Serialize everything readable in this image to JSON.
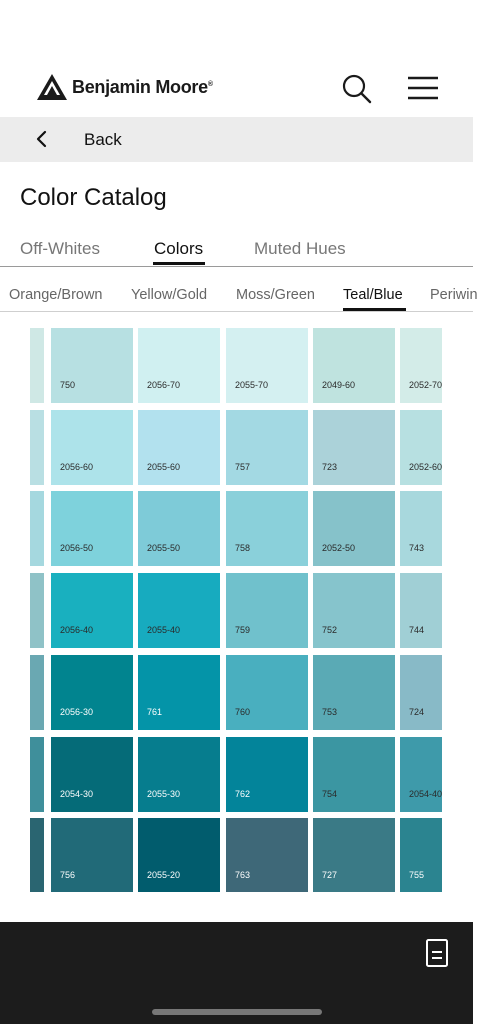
{
  "header": {
    "brand_name": "Benjamin Moore",
    "brand_mark": "®",
    "icons": {
      "logo": "mountain-logo-icon",
      "search": "search-icon",
      "menu": "hamburger-menu-icon"
    }
  },
  "backbar": {
    "label": "Back",
    "icon": "chevron-left-icon"
  },
  "page_title": "Color Catalog",
  "tabs": [
    {
      "label": "Off-Whites",
      "active": false
    },
    {
      "label": "Colors",
      "active": true
    },
    {
      "label": "Muted Hues",
      "active": false
    }
  ],
  "subtabs": [
    {
      "label": "Orange/Brown",
      "active": false
    },
    {
      "label": "Yellow/Gold",
      "active": false
    },
    {
      "label": "Moss/Green",
      "active": false
    },
    {
      "label": "Teal/Blue",
      "active": true
    },
    {
      "label": "Periwin",
      "active": false
    }
  ],
  "swatches": {
    "edge_colors": [
      "#cfe8e5",
      "#b9dfe3",
      "#a5d8df",
      "#8fc2c7",
      "#6aa8b2",
      "#3f8f9b",
      "#2a6571"
    ],
    "rows": [
      [
        {
          "code": "750",
          "color": "#b7e0e2"
        },
        {
          "code": "2056-70",
          "color": "#d0f0f1"
        },
        {
          "code": "2055-70",
          "color": "#d4f0f1"
        },
        {
          "code": "2049-60",
          "color": "#bfe3df"
        },
        {
          "code": "2052-70",
          "color": "#d3ece8"
        }
      ],
      [
        {
          "code": "2056-60",
          "color": "#ade3ea"
        },
        {
          "code": "2055-60",
          "color": "#b2e1ee"
        },
        {
          "code": "757",
          "color": "#a3d9e3"
        },
        {
          "code": "723",
          "color": "#abd2d9"
        },
        {
          "code": "2052-60",
          "color": "#b7e0e1"
        }
      ],
      [
        {
          "code": "2056-50",
          "color": "#7ed2dc"
        },
        {
          "code": "2055-50",
          "color": "#7ecbd8"
        },
        {
          "code": "758",
          "color": "#8ad0da"
        },
        {
          "code": "2052-50",
          "color": "#86c2ca"
        },
        {
          "code": "743",
          "color": "#a8d8dd"
        }
      ],
      [
        {
          "code": "2056-40",
          "color": "#19b0bf"
        },
        {
          "code": "2055-40",
          "color": "#17abbf"
        },
        {
          "code": "759",
          "color": "#70c1cc"
        },
        {
          "code": "752",
          "color": "#86c4cc"
        },
        {
          "code": "744",
          "color": "#a0cfd5"
        }
      ],
      [
        {
          "code": "2056-30",
          "color": "#01848f"
        },
        {
          "code": "761",
          "color": "#0494a8"
        },
        {
          "code": "760",
          "color": "#49afbf"
        },
        {
          "code": "753",
          "color": "#5aaab5"
        },
        {
          "code": "724",
          "color": "#88bac7"
        }
      ],
      [
        {
          "code": "2054-30",
          "color": "#056b78"
        },
        {
          "code": "2055-30",
          "color": "#067d8e"
        },
        {
          "code": "762",
          "color": "#03849a"
        },
        {
          "code": "754",
          "color": "#3b96a2"
        },
        {
          "code": "2054-40",
          "color": "#3e9aaa"
        }
      ],
      [
        {
          "code": "756",
          "color": "#216a78"
        },
        {
          "code": "2055-20",
          "color": "#015c6d"
        },
        {
          "code": "763",
          "color": "#3e6878"
        },
        {
          "code": "727",
          "color": "#3a7a86"
        },
        {
          "code": "755",
          "color": "#2b8490"
        }
      ]
    ]
  },
  "bottombar": {
    "icon": "document-icon"
  }
}
